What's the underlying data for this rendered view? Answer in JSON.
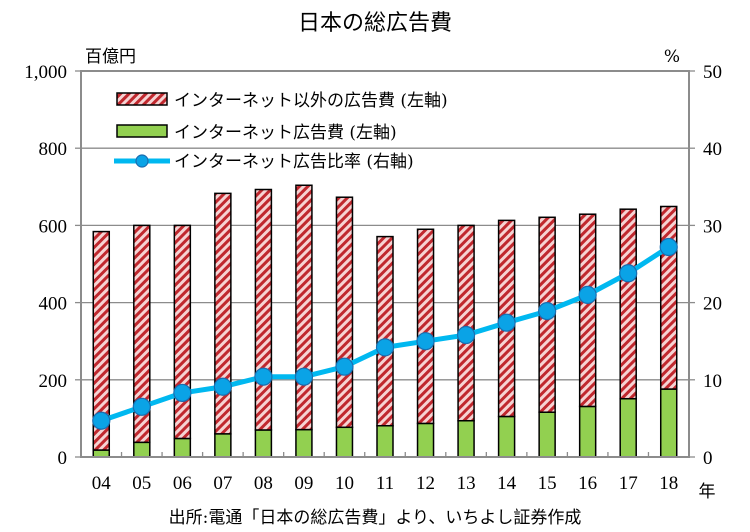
{
  "chart_data": {
    "type": "bar",
    "title": "日本の総広告費",
    "left_unit": "百億円",
    "right_unit": "%",
    "xlabel": "年",
    "categories": [
      "04",
      "05",
      "06",
      "07",
      "08",
      "09",
      "10",
      "11",
      "12",
      "13",
      "14",
      "15",
      "16",
      "17",
      "18"
    ],
    "y_left": {
      "ylim": [
        0,
        1000
      ],
      "ticks": [
        0,
        200,
        400,
        600,
        800,
        1000
      ],
      "tick_labels": [
        "0",
        "200",
        "400",
        "600",
        "800",
        "1,000"
      ]
    },
    "y_right": {
      "ylim": [
        0,
        50
      ],
      "ticks": [
        0,
        10,
        20,
        30,
        40,
        50
      ],
      "tick_labels": [
        "0",
        "10",
        "20",
        "30",
        "40",
        "50"
      ]
    },
    "grid": true,
    "legend_position": "top-left",
    "series": [
      {
        "name": "インターネット以外の広告費 (左軸)",
        "type": "stacked-bar",
        "axis": "left",
        "values": [
          566,
          562,
          552,
          623,
          623,
          633,
          596,
          490,
          503,
          506,
          508,
          505,
          498,
          491,
          473
        ]
      },
      {
        "name": "インターネット広告費 (左軸)",
        "type": "stacked-bar",
        "axis": "left",
        "values": [
          18,
          38,
          48,
          60,
          70,
          71,
          77,
          81,
          87,
          94,
          105,
          116,
          131,
          151,
          176
        ]
      },
      {
        "name": "インターネット広告比率 (右軸)",
        "type": "line",
        "axis": "right",
        "values": [
          4.7,
          6.5,
          8.3,
          9.1,
          10.4,
          10.4,
          11.7,
          14.2,
          15.0,
          15.8,
          17.4,
          18.9,
          21.0,
          23.8,
          27.2
        ]
      }
    ],
    "source": "出所:電通「日本の総広告費」より、いちよし証券作成"
  },
  "colors": {
    "non_internet_stripe": "#c0282e",
    "non_internet_bg": "#f6d3d3",
    "internet": "#92d050",
    "ratio_line": "#00b8f0",
    "ratio_marker": "#0aa3e6",
    "ratio_marker_edge": "#1a6db0",
    "axis": "#8c8c8c"
  }
}
